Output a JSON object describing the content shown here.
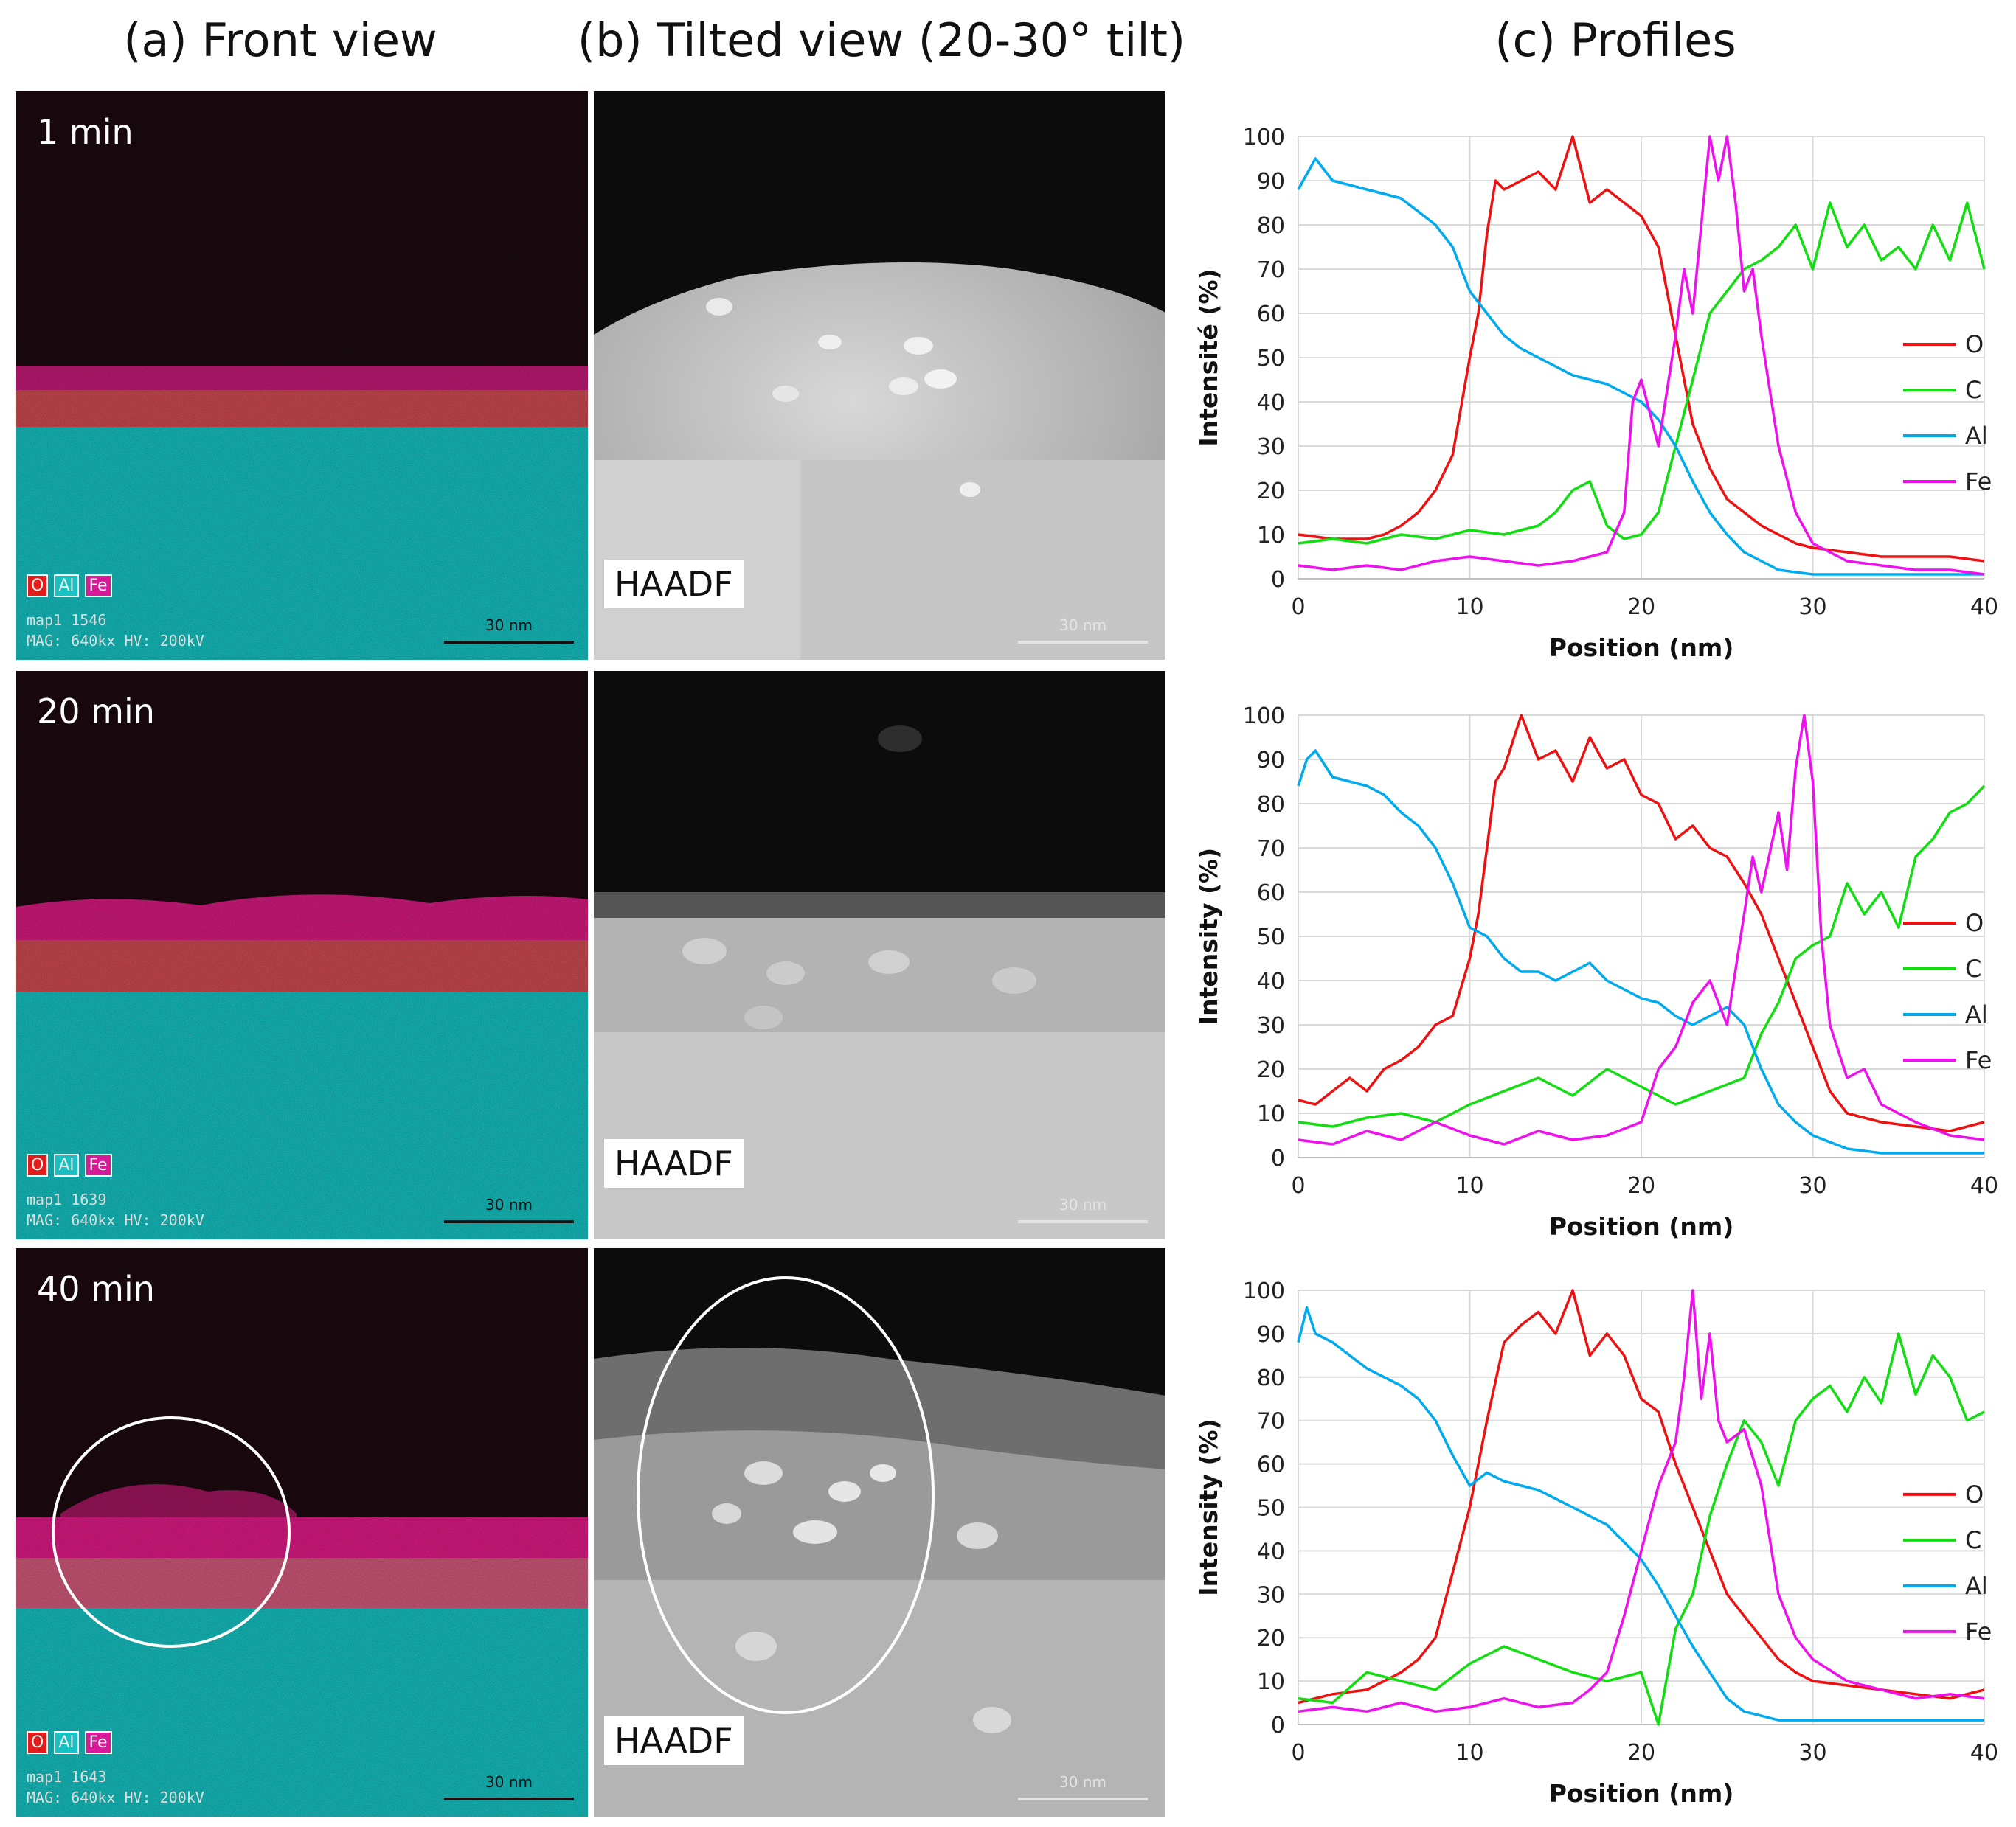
{
  "headers": {
    "a": "(a) Front view",
    "b": "(b) Tilted view (20-30° tilt)",
    "c": "(c) Profiles"
  },
  "rows": [
    {
      "time": "1 min",
      "map_id": "map1 1546",
      "mag": "MAG: 640kx  HV: 200kV",
      "scale": "30 nm",
      "haadf": "HAADF"
    },
    {
      "time": "20 min",
      "map_id": "map1 1639",
      "mag": "MAG: 640kx  HV: 200kV",
      "scale": "30 nm",
      "haadf": "HAADF"
    },
    {
      "time": "40 min",
      "map_id": "map1 1643",
      "mag": "MAG: 640kx  HV: 200kV",
      "scale": "30 nm",
      "haadf": "HAADF"
    }
  ],
  "map_legend": {
    "o": "O",
    "al": "Al",
    "fe": "Fe"
  },
  "colors": {
    "O": "#ee1111",
    "C": "#11dd11",
    "Al": "#00aaee",
    "Fe": "#ee11ee",
    "cyan_map": "#16c8c8",
    "pink_map": "#e0107a",
    "red_map": "#d44a4a"
  },
  "chart_data": [
    {
      "type": "line",
      "title": "",
      "xlabel": "Position (nm)",
      "ylabel": "Intensité (%)",
      "xlim": [
        0,
        40
      ],
      "ylim": [
        0,
        100
      ],
      "xticks": [
        0,
        10,
        20,
        30,
        40
      ],
      "yticks": [
        0,
        10,
        20,
        30,
        40,
        50,
        60,
        70,
        80,
        90,
        100
      ],
      "legend": [
        "O",
        "C",
        "Al",
        "Fe"
      ],
      "series": [
        {
          "name": "O",
          "x": [
            0,
            2,
            4,
            5,
            6,
            7,
            8,
            9,
            10,
            10.5,
            11,
            11.5,
            12,
            13,
            14,
            15,
            16,
            17,
            18,
            19,
            20,
            21,
            21.5,
            22,
            22.5,
            23,
            24,
            25,
            26,
            27,
            28,
            29,
            30,
            32,
            34,
            36,
            38,
            40
          ],
          "y": [
            10,
            9,
            9,
            10,
            12,
            15,
            20,
            28,
            50,
            60,
            78,
            90,
            88,
            90,
            92,
            88,
            100,
            85,
            88,
            85,
            82,
            75,
            65,
            55,
            45,
            35,
            25,
            18,
            15,
            12,
            10,
            8,
            7,
            6,
            5,
            5,
            5,
            4
          ]
        },
        {
          "name": "C",
          "x": [
            0,
            2,
            4,
            6,
            8,
            10,
            12,
            14,
            15,
            16,
            17,
            18,
            19,
            20,
            21,
            22,
            23,
            24,
            25,
            26,
            27,
            28,
            29,
            30,
            31,
            32,
            33,
            34,
            35,
            36,
            37,
            38,
            39,
            40
          ],
          "y": [
            8,
            9,
            8,
            10,
            9,
            11,
            10,
            12,
            15,
            20,
            22,
            12,
            9,
            10,
            15,
            30,
            45,
            60,
            65,
            70,
            72,
            75,
            80,
            70,
            85,
            75,
            80,
            72,
            75,
            70,
            80,
            72,
            85,
            70
          ]
        },
        {
          "name": "Al",
          "x": [
            0,
            1,
            2,
            4,
            6,
            8,
            9,
            10,
            11,
            12,
            13,
            14,
            15,
            16,
            17,
            18,
            19,
            20,
            21,
            22,
            23,
            24,
            25,
            26,
            27,
            28,
            30,
            32,
            34,
            36,
            38,
            40
          ],
          "y": [
            88,
            95,
            90,
            88,
            86,
            80,
            75,
            65,
            60,
            55,
            52,
            50,
            48,
            46,
            45,
            44,
            42,
            40,
            36,
            30,
            22,
            15,
            10,
            6,
            4,
            2,
            1,
            1,
            1,
            1,
            1,
            1
          ]
        },
        {
          "name": "Fe",
          "x": [
            0,
            2,
            4,
            6,
            8,
            10,
            12,
            14,
            16,
            17,
            18,
            19,
            19.5,
            20,
            21,
            22,
            22.5,
            23,
            23.5,
            24,
            24.5,
            25,
            25.5,
            26,
            26.5,
            27,
            28,
            29,
            30,
            32,
            34,
            36,
            38,
            40
          ],
          "y": [
            3,
            2,
            3,
            2,
            4,
            5,
            4,
            3,
            4,
            5,
            6,
            15,
            40,
            45,
            30,
            55,
            70,
            60,
            80,
            100,
            90,
            100,
            85,
            65,
            70,
            55,
            30,
            15,
            8,
            4,
            3,
            2,
            2,
            1
          ]
        }
      ]
    },
    {
      "type": "line",
      "title": "",
      "xlabel": "Position (nm)",
      "ylabel": "Intensity (%)",
      "xlim": [
        0,
        40
      ],
      "ylim": [
        0,
        100
      ],
      "xticks": [
        0,
        10,
        20,
        30,
        40
      ],
      "yticks": [
        0,
        10,
        20,
        30,
        40,
        50,
        60,
        70,
        80,
        90,
        100
      ],
      "legend": [
        "O",
        "C",
        "Al",
        "Fe"
      ],
      "series": [
        {
          "name": "O",
          "x": [
            0,
            1,
            2,
            3,
            4,
            5,
            6,
            7,
            8,
            9,
            10,
            10.5,
            11,
            11.5,
            12,
            13,
            14,
            15,
            16,
            17,
            18,
            19,
            20,
            21,
            22,
            23,
            24,
            25,
            26,
            27,
            28,
            29,
            30,
            31,
            32,
            34,
            36,
            38,
            40
          ],
          "y": [
            13,
            12,
            15,
            18,
            15,
            20,
            22,
            25,
            30,
            32,
            45,
            55,
            70,
            85,
            88,
            100,
            90,
            92,
            85,
            95,
            88,
            90,
            82,
            80,
            72,
            75,
            70,
            68,
            62,
            55,
            45,
            35,
            25,
            15,
            10,
            8,
            7,
            6,
            8
          ]
        },
        {
          "name": "C",
          "x": [
            0,
            2,
            4,
            6,
            8,
            10,
            12,
            14,
            16,
            18,
            20,
            22,
            24,
            26,
            27,
            28,
            29,
            30,
            31,
            32,
            33,
            34,
            35,
            36,
            37,
            38,
            39,
            40
          ],
          "y": [
            8,
            7,
            9,
            10,
            8,
            12,
            15,
            18,
            14,
            20,
            16,
            12,
            15,
            18,
            28,
            35,
            45,
            48,
            50,
            62,
            55,
            60,
            52,
            68,
            72,
            78,
            80,
            84
          ]
        },
        {
          "name": "Al",
          "x": [
            0,
            0.5,
            1,
            2,
            3,
            4,
            5,
            6,
            7,
            8,
            9,
            10,
            11,
            12,
            13,
            14,
            15,
            16,
            17,
            18,
            19,
            20,
            21,
            22,
            23,
            24,
            25,
            26,
            27,
            28,
            29,
            30,
            32,
            34,
            36,
            38,
            40
          ],
          "y": [
            84,
            90,
            92,
            86,
            85,
            84,
            82,
            78,
            75,
            70,
            62,
            52,
            50,
            45,
            42,
            42,
            40,
            42,
            44,
            40,
            38,
            36,
            35,
            32,
            30,
            32,
            34,
            30,
            20,
            12,
            8,
            5,
            2,
            1,
            1,
            1,
            1
          ]
        },
        {
          "name": "Fe",
          "x": [
            0,
            2,
            4,
            6,
            8,
            10,
            12,
            14,
            16,
            18,
            20,
            21,
            22,
            23,
            24,
            25,
            26,
            26.5,
            27,
            28,
            28.5,
            29,
            29.5,
            30,
            30.5,
            31,
            32,
            33,
            34,
            36,
            38,
            40
          ],
          "y": [
            4,
            3,
            6,
            4,
            8,
            5,
            3,
            6,
            4,
            5,
            8,
            20,
            25,
            35,
            40,
            30,
            55,
            68,
            60,
            78,
            65,
            88,
            100,
            85,
            50,
            30,
            18,
            20,
            12,
            8,
            5,
            4
          ]
        }
      ]
    },
    {
      "type": "line",
      "title": "",
      "xlabel": "Position (nm)",
      "ylabel": "Intensity (%)",
      "xlim": [
        0,
        40
      ],
      "ylim": [
        0,
        100
      ],
      "xticks": [
        0,
        10,
        20,
        30,
        40
      ],
      "yticks": [
        0,
        10,
        20,
        30,
        40,
        50,
        60,
        70,
        80,
        90,
        100
      ],
      "legend": [
        "O",
        "C",
        "Al",
        "Fe"
      ],
      "series": [
        {
          "name": "O",
          "x": [
            0,
            2,
            4,
            5,
            6,
            7,
            8,
            9,
            10,
            11,
            12,
            13,
            14,
            15,
            16,
            17,
            18,
            19,
            20,
            21,
            22,
            23,
            24,
            25,
            26,
            27,
            28,
            29,
            30,
            32,
            34,
            36,
            38,
            40
          ],
          "y": [
            5,
            7,
            8,
            10,
            12,
            15,
            20,
            35,
            50,
            70,
            88,
            92,
            95,
            90,
            100,
            85,
            90,
            85,
            75,
            72,
            60,
            50,
            40,
            30,
            25,
            20,
            15,
            12,
            10,
            9,
            8,
            7,
            6,
            8
          ]
        },
        {
          "name": "C",
          "x": [
            0,
            2,
            4,
            6,
            8,
            10,
            12,
            14,
            16,
            18,
            20,
            21,
            22,
            23,
            24,
            25,
            26,
            27,
            28,
            29,
            30,
            31,
            32,
            33,
            34,
            35,
            36,
            37,
            38,
            39,
            40
          ],
          "y": [
            6,
            5,
            12,
            10,
            8,
            14,
            18,
            15,
            12,
            10,
            12,
            0,
            22,
            30,
            48,
            60,
            70,
            65,
            55,
            70,
            75,
            78,
            72,
            80,
            74,
            90,
            76,
            85,
            80,
            70,
            72
          ]
        },
        {
          "name": "Al",
          "x": [
            0,
            0.5,
            1,
            2,
            3,
            4,
            5,
            6,
            7,
            8,
            9,
            10,
            11,
            12,
            13,
            14,
            15,
            16,
            17,
            18,
            19,
            20,
            21,
            22,
            23,
            24,
            25,
            26,
            27,
            28,
            30,
            32,
            34,
            36,
            38,
            40
          ],
          "y": [
            88,
            96,
            90,
            88,
            85,
            82,
            80,
            78,
            75,
            70,
            62,
            55,
            58,
            56,
            55,
            54,
            52,
            50,
            48,
            46,
            42,
            38,
            32,
            25,
            18,
            12,
            6,
            3,
            2,
            1,
            1,
            1,
            1,
            1,
            1,
            1
          ]
        },
        {
          "name": "Fe",
          "x": [
            0,
            2,
            4,
            6,
            8,
            10,
            12,
            14,
            16,
            17,
            18,
            19,
            20,
            21,
            22,
            22.5,
            23,
            23.5,
            24,
            24.5,
            25,
            26,
            27,
            28,
            29,
            30,
            32,
            34,
            36,
            38,
            40
          ],
          "y": [
            3,
            4,
            3,
            5,
            3,
            4,
            6,
            4,
            5,
            8,
            12,
            25,
            40,
            55,
            65,
            80,
            100,
            75,
            90,
            70,
            65,
            68,
            55,
            30,
            20,
            15,
            10,
            8,
            6,
            7,
            6
          ]
        }
      ]
    }
  ]
}
